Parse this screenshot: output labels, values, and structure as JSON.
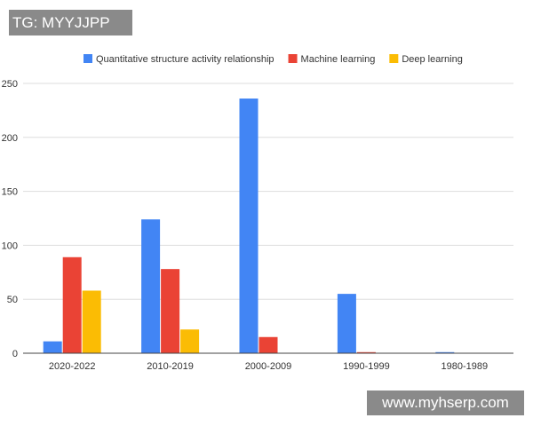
{
  "watermarks": {
    "top_left": "TG: MYYJJPP",
    "bottom_right": "www.myhserp.com"
  },
  "chart_data": {
    "type": "bar",
    "title": "",
    "xlabel": "",
    "ylabel": "",
    "categories": [
      "2020-2022",
      "2010-2019",
      "2000-2009",
      "1990-1999",
      "1980-1989"
    ],
    "series": [
      {
        "name": "Quantitative structure activity relationship",
        "color": "#4285f4",
        "values": [
          11,
          124,
          236,
          55,
          1
        ]
      },
      {
        "name": "Machine learning",
        "color": "#ea4335",
        "values": [
          89,
          78,
          15,
          1,
          0
        ]
      },
      {
        "name": "Deep learning",
        "color": "#fbbc04",
        "values": [
          58,
          22,
          0,
          0,
          0
        ]
      }
    ],
    "ylim": [
      0,
      250
    ],
    "yticks": [
      0,
      50,
      100,
      150,
      200,
      250
    ],
    "grid": true,
    "legend_position": "top"
  }
}
